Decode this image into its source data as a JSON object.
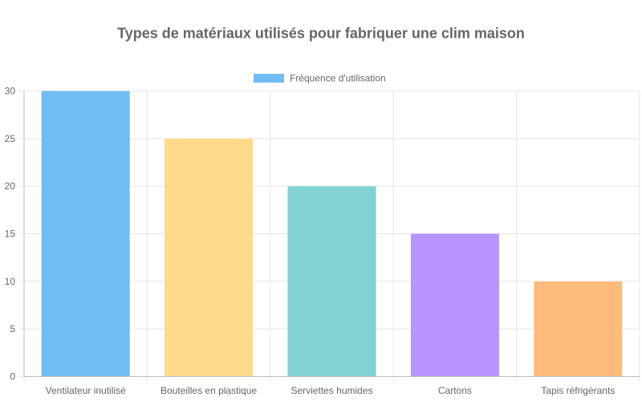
{
  "chart_data": {
    "type": "bar",
    "title": "Types de matériaux utilisés pour fabriquer une clim maison",
    "categories": [
      "Ventilateur inutilisé",
      "Bouteilles en plastique",
      "Serviettes humides",
      "Cartons",
      "Tapis réfrigérants"
    ],
    "series": [
      {
        "name": "Fréquence d'utilisation",
        "values": [
          30,
          25,
          20,
          15,
          10
        ]
      }
    ],
    "bar_colors": [
      "#71BCF2",
      "#FEDB8B",
      "#82D2D3",
      "#B794FE",
      "#FEBB7C"
    ],
    "legend_color": "#71BCF2",
    "ylim": [
      0,
      30
    ],
    "yticks": [
      0,
      5,
      10,
      15,
      20,
      25,
      30
    ],
    "grid": true,
    "legend_position": "top-center",
    "xlabel": "",
    "ylabel": ""
  }
}
